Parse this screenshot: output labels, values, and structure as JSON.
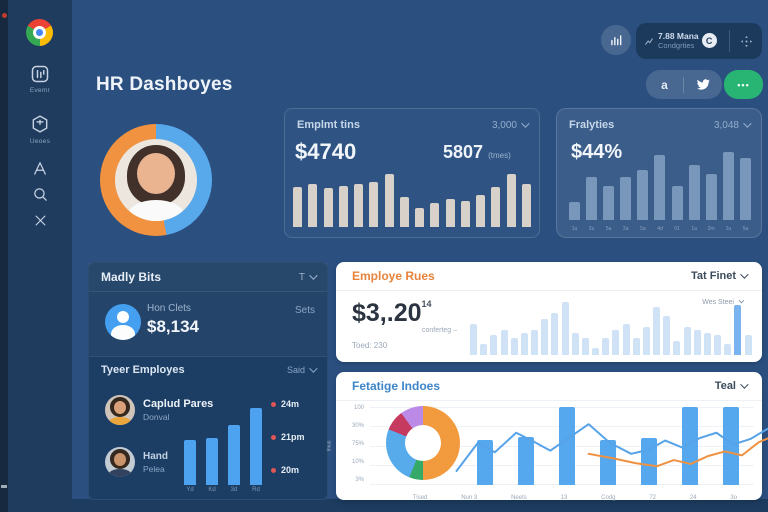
{
  "header": {
    "title": "HR Dashboyes"
  },
  "sidebar": {
    "items": [
      {
        "icon": "dashboard-icon",
        "label": "Evemr"
      },
      {
        "icon": "cube-icon",
        "label": "Ueoes"
      },
      {
        "icon": "letter-a-icon",
        "label": ""
      },
      {
        "icon": "search-icon",
        "label": ""
      },
      {
        "icon": "close-icon",
        "label": ""
      }
    ]
  },
  "topbar": {
    "stats_line1": "7.88 Mana",
    "stats_line2": "Condgrties",
    "stats_badge": "C",
    "social_a": "a",
    "more_label": "•••"
  },
  "profile_ring": {
    "segments": [
      {
        "color": "#58a9eb",
        "value": 47
      },
      {
        "color": "#f0923f",
        "value": 53
      }
    ]
  },
  "cards": {
    "employment": {
      "title": "Emplmt tins",
      "dropdown": "3,000",
      "value1": "$4740",
      "value2": "5807",
      "value2_suffix": "(tmes)",
      "bar_color": "#d7d1ca",
      "bars": [
        65,
        70,
        63,
        66,
        69,
        72,
        85,
        48,
        30,
        38,
        45,
        42,
        52,
        65,
        85,
        70
      ]
    },
    "analytics": {
      "title": "Fralyties",
      "dropdown": "3,048",
      "value": "$44%",
      "bars": [
        24,
        56,
        45,
        56,
        66,
        85,
        45,
        73,
        61,
        90,
        82
      ],
      "ticks": [
        "1u",
        "2u",
        "5a",
        "2a",
        "5a",
        "4d",
        "01",
        "1a",
        "2m",
        "1u",
        "5a"
      ]
    },
    "team": {
      "title": "Madly Bits",
      "dropdown": "T",
      "stat_label": "Hon Clets",
      "stat_value": "$8,134",
      "stat_right": "Sets",
      "section_title": "Tyeer Employes",
      "section_dropdown": "Said",
      "employees": [
        {
          "name": "Caplud Pares",
          "role": "Donval"
        },
        {
          "name": "Hand",
          "role": "Pelea"
        }
      ],
      "mini_bars": [
        54,
        56,
        72,
        92
      ],
      "mini_labels": [
        "Yd",
        "Kd",
        "3d",
        "Rd"
      ],
      "legend": [
        "24m",
        "21pm",
        "20m"
      ]
    },
    "rates": {
      "title": "Employe Rues",
      "dropdown": "Tat Finet",
      "value": "$3,.20",
      "sup": "14",
      "note": "conferteg –",
      "total": "Toed: 230",
      "chart_label": "Wes Steei",
      "highlight_index": 26,
      "bars": [
        55,
        20,
        35,
        45,
        30,
        40,
        45,
        65,
        75,
        95,
        40,
        30,
        12,
        30,
        45,
        55,
        30,
        50,
        85,
        70,
        25,
        50,
        45,
        40,
        35,
        20,
        90,
        35
      ]
    },
    "index": {
      "title": "Fetatige Indoes",
      "dropdown": "Teal",
      "y_axis": "Imus",
      "y_ticks": [
        "100",
        "30%",
        "75%",
        "10%",
        "3%"
      ],
      "x_labels": [
        "Tised",
        "Nun 3",
        "Neets",
        "13",
        "Codg",
        "72",
        "24",
        "3o"
      ],
      "donut_segments": [
        {
          "color": "#f29a3e",
          "value": 50
        },
        {
          "color": "#35a968",
          "value": 6
        },
        {
          "color": "#58abea",
          "value": 25
        },
        {
          "color": "#c63a60",
          "value": 9
        },
        {
          "color": "#bb8ae6",
          "value": 10
        }
      ],
      "bars": [
        58,
        62,
        100,
        58,
        60,
        100,
        100
      ],
      "line_blue": [
        [
          2,
          82
        ],
        [
          7,
          46
        ],
        [
          11,
          58
        ],
        [
          16,
          33
        ],
        [
          20,
          44
        ],
        [
          24,
          56
        ],
        [
          28,
          41
        ],
        [
          33,
          22
        ],
        [
          38,
          46
        ],
        [
          43,
          60
        ],
        [
          47,
          55
        ],
        [
          51,
          43
        ],
        [
          55,
          52
        ],
        [
          59,
          40
        ],
        [
          63,
          33
        ],
        [
          67,
          48
        ],
        [
          71,
          41
        ],
        [
          75,
          28
        ],
        [
          79,
          42
        ],
        [
          83,
          52
        ],
        [
          88,
          35
        ],
        [
          93,
          46
        ],
        [
          97,
          40
        ]
      ],
      "line_orange": [
        [
          33,
          60
        ],
        [
          39,
          66
        ],
        [
          44,
          72
        ],
        [
          49,
          76
        ],
        [
          53,
          68
        ],
        [
          57,
          73
        ],
        [
          61,
          63
        ],
        [
          65,
          57
        ],
        [
          69,
          62
        ],
        [
          73,
          45
        ],
        [
          77,
          36
        ],
        [
          81,
          52
        ],
        [
          85,
          30
        ],
        [
          90,
          50
        ],
        [
          95,
          38
        ]
      ]
    }
  }
}
